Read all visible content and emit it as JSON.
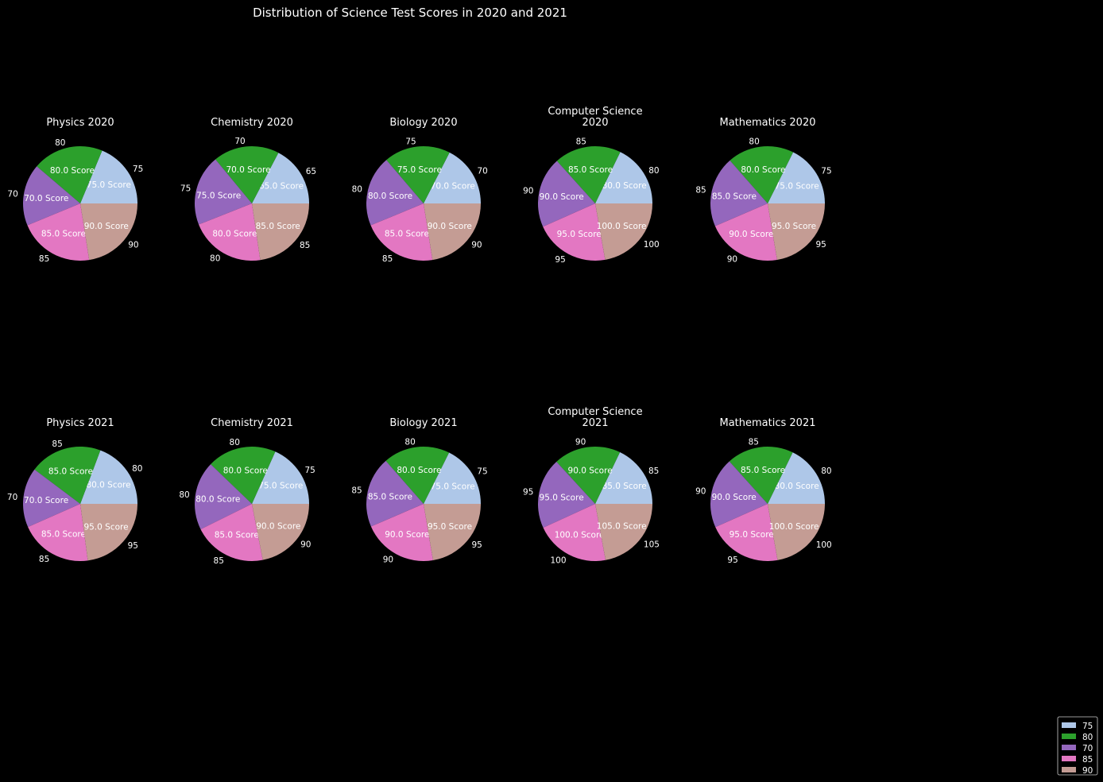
{
  "chart_data": {
    "type": "pie",
    "title": "Distribution of Science Test Scores in 2020 and 2021",
    "colors": [
      "#aec7e8",
      "#2ca02c",
      "#9467bd",
      "#e377c2",
      "#c49c94"
    ],
    "legend": {
      "placement": "lower-right",
      "entries": [
        "75",
        "80",
        "70",
        "85",
        "90"
      ]
    },
    "pies": [
      {
        "title": "Physics 2020",
        "values": [
          75,
          80,
          70,
          85,
          90
        ],
        "labels": [
          "75",
          "80",
          "70",
          "85",
          "90"
        ],
        "autopct": [
          "75.0 Score",
          "80.0 Score",
          "70.0 Score",
          "85.0 Score",
          "90.0 Score"
        ]
      },
      {
        "title": "Chemistry 2020",
        "values": [
          65,
          70,
          75,
          80,
          85
        ],
        "labels": [
          "65",
          "70",
          "75",
          "80",
          "85"
        ],
        "autopct": [
          "65.0 Score",
          "70.0 Score",
          "75.0 Score",
          "80.0 Score",
          "85.0 Score"
        ]
      },
      {
        "title": "Biology 2020",
        "values": [
          70,
          75,
          80,
          85,
          90
        ],
        "labels": [
          "70",
          "75",
          "80",
          "85",
          "90"
        ],
        "autopct": [
          "70.0 Score",
          "75.0 Score",
          "80.0 Score",
          "85.0 Score",
          "90.0 Score"
        ]
      },
      {
        "title": "Computer Science\n2020",
        "values": [
          80,
          85,
          90,
          95,
          100
        ],
        "labels": [
          "80",
          "85",
          "90",
          "95",
          "100"
        ],
        "autopct": [
          "80.0 Score",
          "85.0 Score",
          "90.0 Score",
          "95.0 Score",
          "100.0 Score"
        ]
      },
      {
        "title": "Mathematics 2020",
        "values": [
          75,
          80,
          85,
          90,
          95
        ],
        "labels": [
          "75",
          "80",
          "85",
          "90",
          "95"
        ],
        "autopct": [
          "75.0 Score",
          "80.0 Score",
          "85.0 Score",
          "90.0 Score",
          "95.0 Score"
        ]
      },
      {
        "title": "Physics 2021",
        "values": [
          80,
          85,
          70,
          85,
          95
        ],
        "labels": [
          "80",
          "85",
          "70",
          "85",
          "95"
        ],
        "autopct": [
          "80.0 Score",
          "85.0 Score",
          "70.0 Score",
          "85.0 Score",
          "95.0 Score"
        ]
      },
      {
        "title": "Chemistry 2021",
        "values": [
          75,
          80,
          80,
          85,
          90
        ],
        "labels": [
          "75",
          "80",
          "80",
          "85",
          "90"
        ],
        "autopct": [
          "75.0 Score",
          "80.0 Score",
          "80.0 Score",
          "85.0 Score",
          "90.0 Score"
        ]
      },
      {
        "title": "Biology 2021",
        "values": [
          75,
          80,
          85,
          90,
          95
        ],
        "labels": [
          "75",
          "80",
          "85",
          "90",
          "95"
        ],
        "autopct": [
          "75.0 Score",
          "80.0 Score",
          "85.0 Score",
          "90.0 Score",
          "95.0 Score"
        ]
      },
      {
        "title": "Computer Science\n2021",
        "values": [
          85,
          90,
          95,
          100,
          105
        ],
        "labels": [
          "85",
          "90",
          "95",
          "100",
          "105"
        ],
        "autopct": [
          "85.0 Score",
          "90.0 Score",
          "95.0 Score",
          "100.0 Score",
          "105.0 Score"
        ]
      },
      {
        "title": "Mathematics 2021",
        "values": [
          80,
          85,
          90,
          95,
          100
        ],
        "labels": [
          "80",
          "85",
          "90",
          "95",
          "100"
        ],
        "autopct": [
          "80.0 Score",
          "85.0 Score",
          "90.0 Score",
          "95.0 Score",
          "100.0 Score"
        ]
      }
    ]
  }
}
